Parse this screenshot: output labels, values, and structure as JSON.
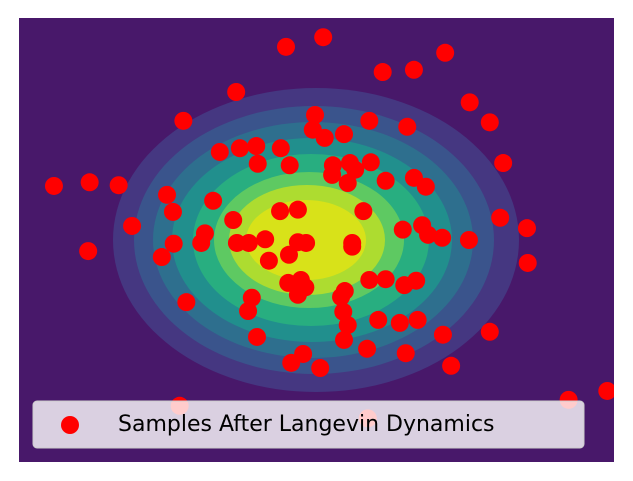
{
  "chart_data": {
    "type": "scatter",
    "series": [
      {
        "name": "Samples After Langevin Dynamics",
        "color": "#ff0000",
        "x": [
          -0.41,
          0.09,
          0.89,
          1.31,
          1.73,
          -1.08,
          -1.79,
          2.06,
          2.33,
          -0.02,
          -0.05,
          0.11,
          0.37,
          0.71,
          1.22,
          2.51,
          -3.53,
          -3.05,
          -2.66,
          -1.3,
          -1.03,
          -0.81,
          -0.48,
          -0.79,
          -0.36,
          0.22,
          0.45,
          0.73,
          0.21,
          0.52,
          0.42,
          0.93,
          1.31,
          1.47,
          -2.01,
          -1.93,
          -1.39,
          -1.12,
          -0.49,
          -0.25,
          0.63,
          2.47,
          2.83,
          -2.48,
          -3.07,
          -2.08,
          -1.92,
          -1.55,
          -1.5,
          -1.07,
          -0.91,
          -0.69,
          -0.25,
          -0.14,
          0.48,
          0.48,
          1.16,
          1.42,
          1.5,
          1.69,
          2.05,
          2.84,
          -0.64,
          -0.37,
          -0.38,
          -0.21,
          -0.15,
          -0.25,
          0.33,
          0.38,
          0.71,
          0.93,
          1.18,
          1.34,
          -1.75,
          -0.87,
          -0.92,
          0.36,
          0.42,
          0.83,
          1.12,
          1.36,
          0.37,
          -0.8,
          1.7,
          2.33,
          0.68,
          1.2,
          -0.18,
          -0.34,
          0.05,
          1.81,
          -1.84,
          0.69,
          3.39,
          3.91
        ],
        "y": [
          2.61,
          2.74,
          2.27,
          2.3,
          2.53,
          2.0,
          1.61,
          1.86,
          1.59,
          1.69,
          1.49,
          1.38,
          1.43,
          1.61,
          1.53,
          1.04,
          0.73,
          0.78,
          0.74,
          1.19,
          1.24,
          1.27,
          1.24,
          1.03,
          1.01,
          1.01,
          1.04,
          1.05,
          0.88,
          0.95,
          0.77,
          0.8,
          0.84,
          0.72,
          0.61,
          0.38,
          0.53,
          0.27,
          0.39,
          0.41,
          0.39,
          0.3,
          0.16,
          0.19,
          -0.15,
          -0.23,
          -0.05,
          -0.04,
          0.09,
          -0.04,
          -0.04,
          0.01,
          -0.03,
          -0.04,
          -0.04,
          -0.09,
          0.14,
          0.2,
          0.07,
          0.03,
          0.0,
          -0.31,
          -0.28,
          -0.2,
          -0.58,
          -0.54,
          -0.64,
          -0.74,
          -0.77,
          -0.69,
          -0.54,
          -0.53,
          -0.61,
          -0.55,
          -0.84,
          -0.78,
          -0.96,
          -0.97,
          -1.15,
          -1.08,
          -1.12,
          -1.08,
          -1.35,
          -1.31,
          -1.28,
          -1.24,
          -1.47,
          -1.53,
          -1.54,
          -1.66,
          -1.73,
          -1.7,
          -2.24,
          -2.41,
          -2.16,
          -2.04
        ]
      }
    ],
    "xlim": [
      -4,
      4
    ],
    "ylim": [
      -3,
      3
    ],
    "legend": "lower left"
  }
}
